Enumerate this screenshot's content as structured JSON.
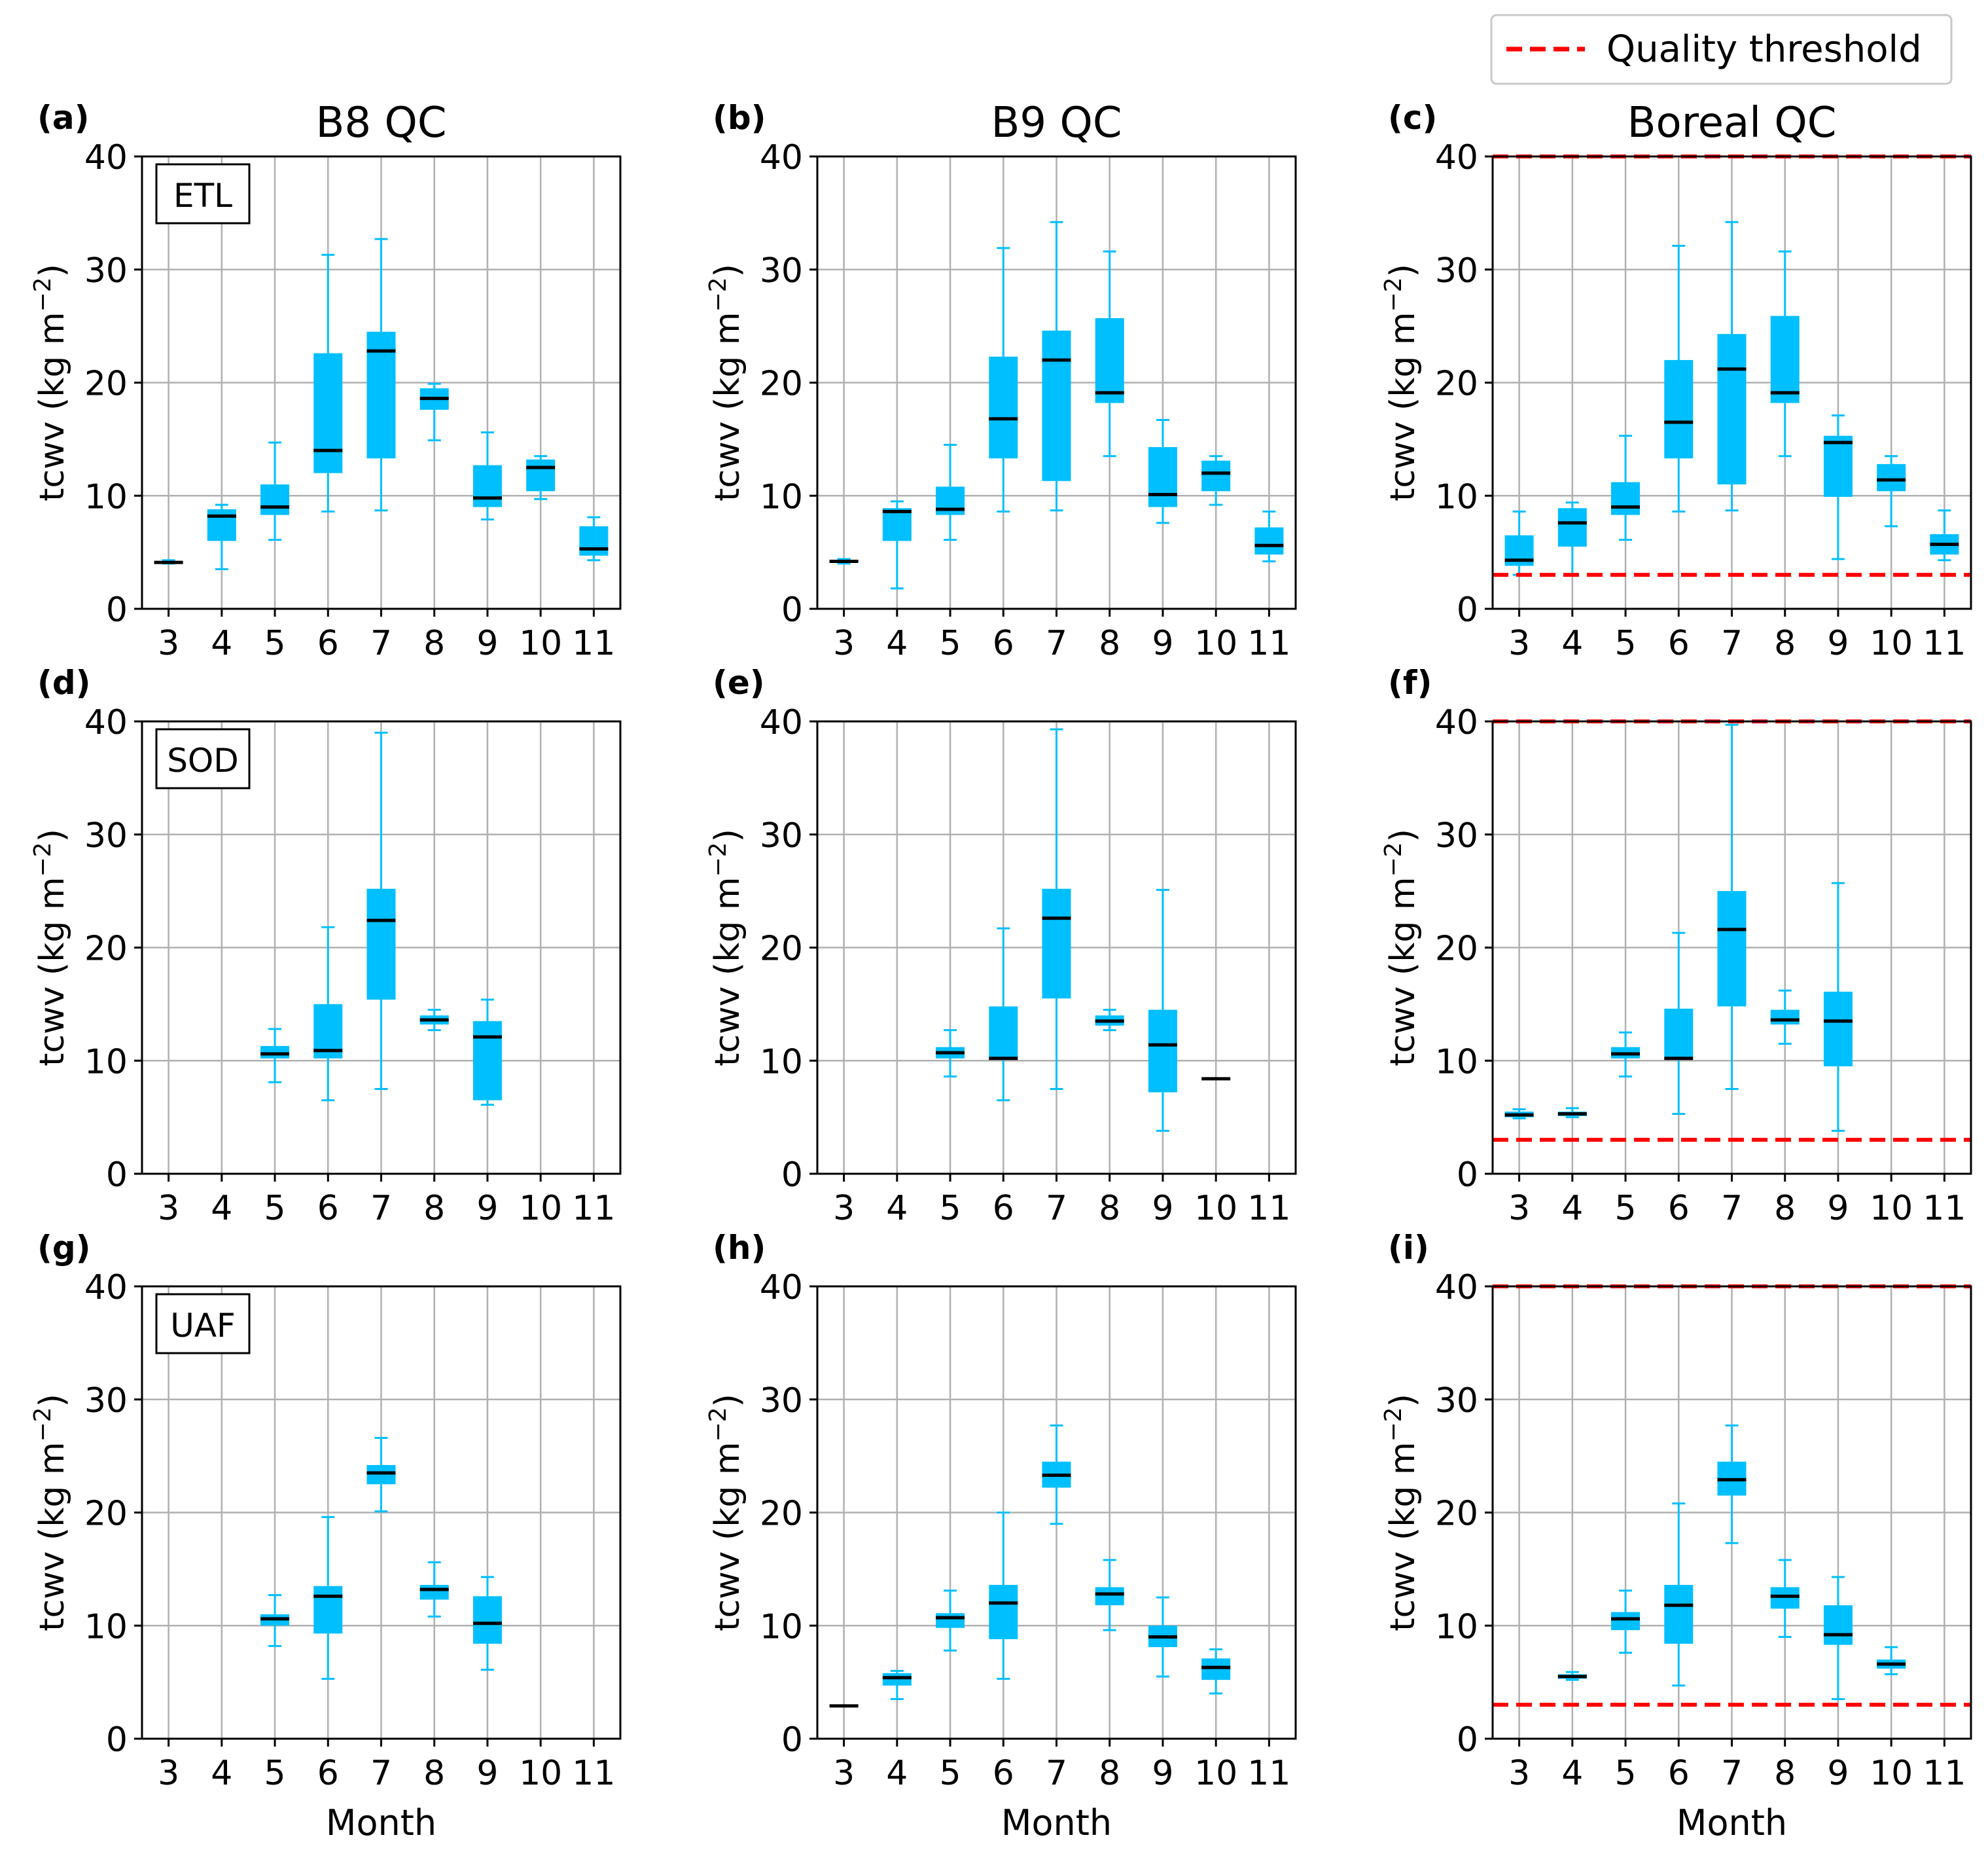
{
  "figure": {
    "column_titles": [
      "B8 QC",
      "B9 QC",
      "Boreal QC"
    ],
    "x_axis_label": "Month",
    "y_axis_label_main": "tcwv (kg m",
    "y_axis_label_sup": "−2",
    "y_axis_label_end": ")",
    "legend": {
      "label": "Quality threshold",
      "color": "#ff0000"
    },
    "box_color": "#00bfff",
    "median_color": "#000000"
  },
  "chart_data": [
    {
      "type": "box",
      "panel_label": "(a)",
      "column_title": "B8 QC",
      "station": "ETL",
      "categories": [
        "3",
        "4",
        "5",
        "6",
        "7",
        "8",
        "9",
        "10",
        "11"
      ],
      "ylim": [
        0,
        40
      ],
      "yticks": [
        0,
        10,
        20,
        30,
        40
      ],
      "xlabel": "",
      "ylabel": "tcwv (kg m−2)",
      "grid": true,
      "threshold_lines": [],
      "boxes": [
        [
          4.0,
          4.0,
          4.1,
          4.2,
          4.3
        ],
        [
          3.5,
          6.0,
          8.2,
          8.8,
          9.2
        ],
        [
          6.1,
          8.3,
          9.0,
          11.0,
          14.7
        ],
        [
          8.6,
          12.0,
          14.0,
          22.6,
          31.3
        ],
        [
          8.7,
          13.3,
          22.8,
          24.5,
          32.7
        ],
        [
          14.9,
          17.6,
          18.6,
          19.5,
          19.9
        ],
        [
          7.9,
          9.0,
          9.8,
          12.7,
          15.6
        ],
        [
          9.7,
          10.4,
          12.5,
          13.2,
          13.5
        ],
        [
          4.3,
          4.7,
          5.3,
          7.3,
          8.1
        ]
      ]
    },
    {
      "type": "box",
      "panel_label": "(b)",
      "column_title": "B9 QC",
      "station": "",
      "categories": [
        "3",
        "4",
        "5",
        "6",
        "7",
        "8",
        "9",
        "10",
        "11"
      ],
      "ylim": [
        0,
        40
      ],
      "yticks": [
        0,
        10,
        20,
        30,
        40
      ],
      "xlabel": "",
      "ylabel": "tcwv (kg m−2)",
      "grid": true,
      "threshold_lines": [],
      "boxes": [
        [
          4.0,
          4.1,
          4.2,
          4.3,
          4.4
        ],
        [
          1.8,
          6.0,
          8.6,
          8.9,
          9.5
        ],
        [
          6.1,
          8.3,
          8.8,
          10.8,
          14.5
        ],
        [
          8.6,
          13.3,
          16.8,
          22.3,
          31.9
        ],
        [
          8.7,
          11.3,
          22.0,
          24.6,
          34.2
        ],
        [
          13.5,
          18.2,
          19.1,
          25.7,
          31.6
        ],
        [
          7.6,
          9.0,
          10.1,
          14.3,
          16.7
        ],
        [
          9.2,
          10.4,
          12.0,
          13.1,
          13.5
        ],
        [
          4.2,
          4.8,
          5.6,
          7.2,
          8.6
        ]
      ]
    },
    {
      "type": "box",
      "panel_label": "(c)",
      "column_title": "Boreal QC",
      "station": "",
      "categories": [
        "3",
        "4",
        "5",
        "6",
        "7",
        "8",
        "9",
        "10",
        "11"
      ],
      "ylim": [
        0,
        40
      ],
      "yticks": [
        0,
        10,
        20,
        30,
        40
      ],
      "xlabel": "",
      "ylabel": "tcwv (kg m−2)",
      "grid": true,
      "threshold_lines": [
        3,
        40
      ],
      "boxes": [
        [
          3.0,
          3.8,
          4.3,
          6.5,
          8.6
        ],
        [
          3.0,
          5.5,
          7.6,
          8.9,
          9.4
        ],
        [
          6.1,
          8.3,
          9.0,
          11.2,
          15.3
        ],
        [
          8.6,
          13.3,
          16.5,
          22.0,
          32.1
        ],
        [
          8.7,
          11.0,
          21.2,
          24.3,
          34.2
        ],
        [
          13.5,
          18.2,
          19.1,
          25.9,
          31.6
        ],
        [
          4.4,
          9.9,
          14.7,
          15.3,
          17.1
        ],
        [
          7.3,
          10.4,
          11.4,
          12.8,
          13.5
        ],
        [
          4.3,
          4.8,
          5.7,
          6.6,
          8.7
        ]
      ]
    },
    {
      "type": "box",
      "panel_label": "(d)",
      "column_title": "B8 QC",
      "station": "SOD",
      "categories": [
        "3",
        "4",
        "5",
        "6",
        "7",
        "8",
        "9",
        "10",
        "11"
      ],
      "ylim": [
        0,
        40
      ],
      "yticks": [
        0,
        10,
        20,
        30,
        40
      ],
      "xlabel": "",
      "ylabel": "tcwv (kg m−2)",
      "grid": true,
      "threshold_lines": [],
      "boxes": [
        null,
        null,
        [
          8.1,
          10.2,
          10.6,
          11.3,
          12.8
        ],
        [
          6.5,
          10.2,
          10.9,
          15.0,
          21.8
        ],
        [
          7.5,
          15.4,
          22.4,
          25.2,
          39.0
        ],
        [
          12.7,
          13.2,
          13.6,
          14.0,
          14.5
        ],
        [
          6.1,
          6.5,
          12.1,
          13.5,
          15.4
        ],
        null,
        null
      ]
    },
    {
      "type": "box",
      "panel_label": "(e)",
      "column_title": "B9 QC",
      "station": "",
      "categories": [
        "3",
        "4",
        "5",
        "6",
        "7",
        "8",
        "9",
        "10",
        "11"
      ],
      "ylim": [
        0,
        40
      ],
      "yticks": [
        0,
        10,
        20,
        30,
        40
      ],
      "xlabel": "",
      "ylabel": "tcwv (kg m−2)",
      "grid": true,
      "threshold_lines": [],
      "boxes": [
        null,
        null,
        [
          8.6,
          10.2,
          10.7,
          11.2,
          12.7
        ],
        [
          6.5,
          10.3,
          10.2,
          14.8,
          21.7
        ],
        [
          7.5,
          15.5,
          22.6,
          25.2,
          39.3
        ],
        [
          12.7,
          13.1,
          13.5,
          14.0,
          14.5
        ],
        [
          3.8,
          7.2,
          11.4,
          14.5,
          25.1
        ],
        [
          8.4,
          8.4,
          8.4,
          8.4,
          8.4
        ],
        null
      ]
    },
    {
      "type": "box",
      "panel_label": "(f)",
      "column_title": "Boreal QC",
      "station": "",
      "categories": [
        "3",
        "4",
        "5",
        "6",
        "7",
        "8",
        "9",
        "10",
        "11"
      ],
      "ylim": [
        0,
        40
      ],
      "yticks": [
        0,
        10,
        20,
        30,
        40
      ],
      "xlabel": "",
      "ylabel": "tcwv (kg m−2)",
      "grid": true,
      "threshold_lines": [
        3,
        40
      ],
      "boxes": [
        [
          4.9,
          5.0,
          5.2,
          5.5,
          5.7
        ],
        [
          5.0,
          5.1,
          5.3,
          5.5,
          5.8
        ],
        [
          8.6,
          10.2,
          10.6,
          11.2,
          12.5
        ],
        [
          5.3,
          10.3,
          10.2,
          14.6,
          21.3
        ],
        [
          7.5,
          14.8,
          21.6,
          25.0,
          39.7
        ],
        [
          11.5,
          13.2,
          13.6,
          14.5,
          16.2
        ],
        [
          3.8,
          9.5,
          13.5,
          16.1,
          25.7
        ],
        null,
        null
      ]
    },
    {
      "type": "box",
      "panel_label": "(g)",
      "column_title": "B8 QC",
      "station": "UAF",
      "categories": [
        "3",
        "4",
        "5",
        "6",
        "7",
        "8",
        "9",
        "10",
        "11"
      ],
      "ylim": [
        0,
        40
      ],
      "yticks": [
        0,
        10,
        20,
        30,
        40
      ],
      "xlabel": "Month",
      "ylabel": "tcwv (kg m−2)",
      "grid": true,
      "threshold_lines": [],
      "boxes": [
        null,
        null,
        [
          8.2,
          10.0,
          10.6,
          11.0,
          12.7
        ],
        [
          5.3,
          9.3,
          12.6,
          13.5,
          19.6
        ],
        [
          20.1,
          22.5,
          23.5,
          24.2,
          26.6
        ],
        [
          10.8,
          12.3,
          13.2,
          13.6,
          15.6
        ],
        [
          6.1,
          8.4,
          10.2,
          12.6,
          14.3
        ],
        null,
        null
      ]
    },
    {
      "type": "box",
      "panel_label": "(h)",
      "column_title": "B9 QC",
      "station": "",
      "categories": [
        "3",
        "4",
        "5",
        "6",
        "7",
        "8",
        "9",
        "10",
        "11"
      ],
      "ylim": [
        0,
        40
      ],
      "yticks": [
        0,
        10,
        20,
        30,
        40
      ],
      "xlabel": "Month",
      "ylabel": "tcwv (kg m−2)",
      "grid": true,
      "threshold_lines": [],
      "boxes": [
        [
          2.9,
          2.9,
          2.9,
          2.9,
          2.9
        ],
        [
          3.5,
          4.7,
          5.4,
          5.8,
          6.0
        ],
        [
          7.8,
          9.8,
          10.7,
          11.1,
          13.1
        ],
        [
          5.3,
          8.8,
          12.0,
          13.6,
          20.0
        ],
        [
          19.0,
          22.2,
          23.3,
          24.5,
          27.7
        ],
        [
          9.6,
          11.8,
          12.8,
          13.4,
          15.8
        ],
        [
          5.5,
          8.1,
          9.0,
          10.0,
          12.5
        ],
        [
          4.0,
          5.2,
          6.3,
          7.1,
          7.9
        ],
        null
      ]
    },
    {
      "type": "box",
      "panel_label": "(i)",
      "column_title": "Boreal QC",
      "station": "",
      "categories": [
        "3",
        "4",
        "5",
        "6",
        "7",
        "8",
        "9",
        "10",
        "11"
      ],
      "ylim": [
        0,
        40
      ],
      "yticks": [
        0,
        10,
        20,
        30,
        40
      ],
      "xlabel": "Month",
      "ylabel": "tcwv (kg m−2)",
      "grid": true,
      "threshold_lines": [
        3,
        40
      ],
      "boxes": [
        null,
        [
          5.2,
          5.3,
          5.5,
          5.7,
          5.9
        ],
        [
          7.6,
          9.6,
          10.6,
          11.2,
          13.1
        ],
        [
          4.7,
          8.4,
          11.8,
          13.6,
          20.8
        ],
        [
          17.3,
          21.5,
          22.9,
          24.5,
          27.7
        ],
        [
          9.0,
          11.5,
          12.6,
          13.4,
          15.8
        ],
        [
          3.5,
          8.3,
          9.2,
          11.8,
          14.3
        ],
        [
          5.7,
          6.2,
          6.6,
          7.0,
          8.1
        ],
        null
      ]
    }
  ]
}
